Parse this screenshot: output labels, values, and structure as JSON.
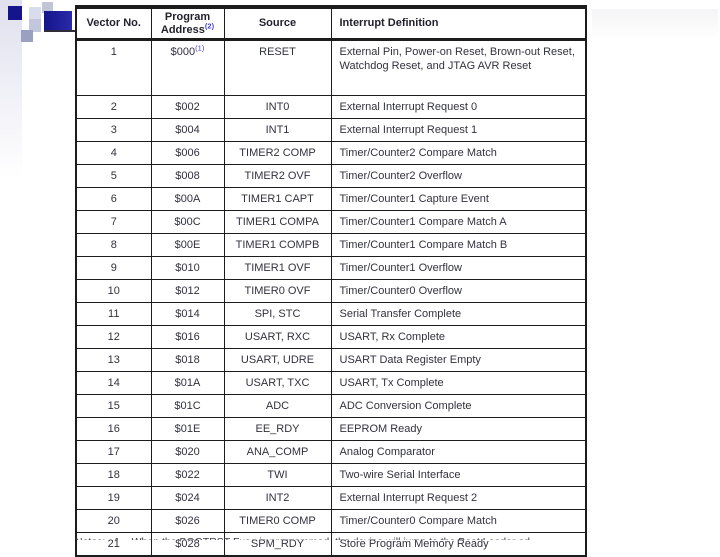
{
  "slide": {
    "footnote": "Notes:   1.   When the BOOTRST Fuse is programmed, the device will jump to the Boot Loader ad"
  },
  "colors": {
    "accent_navy": "#14148c",
    "navy_block": "#2a2aa8",
    "square_light": "#d9dcea",
    "square_lavender": "#c3c7dd",
    "square_gray": "#9aa0bf",
    "square_gray_top": "#c2c5d6",
    "strip_top": "#e0e0ef",
    "border_black": "#1c1c1c",
    "text_dark": "#32323e",
    "superscript_blue": "#4343cf",
    "artifact_gray": "#f4f4f6"
  },
  "table": {
    "header": {
      "vector_no": "Vector No.",
      "program_address_line1": "Program",
      "program_address_line2": "Address",
      "program_address_superscript": "(2)",
      "source": "Source",
      "interrupt_definition": "Interrupt Definition"
    },
    "rows": [
      {
        "vector_no": "1",
        "program_address": "$000",
        "program_address_superscript": "(1)",
        "source": "RESET",
        "interrupt_definition": "External Pin, Power-on Reset, Brown-out Reset, Watchdog Reset, and JTAG AVR Reset"
      },
      {
        "vector_no": "2",
        "program_address": "$002",
        "source": "INT0",
        "interrupt_definition": "External Interrupt Request 0"
      },
      {
        "vector_no": "3",
        "program_address": "$004",
        "source": "INT1",
        "interrupt_definition": "External Interrupt Request 1"
      },
      {
        "vector_no": "4",
        "program_address": "$006",
        "source": "TIMER2 COMP",
        "interrupt_definition": "Timer/Counter2 Compare Match"
      },
      {
        "vector_no": "5",
        "program_address": "$008",
        "source": "TIMER2 OVF",
        "interrupt_definition": "Timer/Counter2 Overflow"
      },
      {
        "vector_no": "6",
        "program_address": "$00A",
        "source": "TIMER1 CAPT",
        "interrupt_definition": "Timer/Counter1 Capture Event"
      },
      {
        "vector_no": "7",
        "program_address": "$00C",
        "source": "TIMER1 COMPA",
        "interrupt_definition": "Timer/Counter1 Compare Match A"
      },
      {
        "vector_no": "8",
        "program_address": "$00E",
        "source": "TIMER1 COMPB",
        "interrupt_definition": "Timer/Counter1 Compare Match B"
      },
      {
        "vector_no": "9",
        "program_address": "$010",
        "source": "TIMER1 OVF",
        "interrupt_definition": "Timer/Counter1 Overflow"
      },
      {
        "vector_no": "10",
        "program_address": "$012",
        "source": "TIMER0 OVF",
        "interrupt_definition": "Timer/Counter0 Overflow"
      },
      {
        "vector_no": "11",
        "program_address": "$014",
        "source": "SPI, STC",
        "interrupt_definition": "Serial Transfer Complete"
      },
      {
        "vector_no": "12",
        "program_address": "$016",
        "source": "USART, RXC",
        "interrupt_definition": "USART, Rx Complete"
      },
      {
        "vector_no": "13",
        "program_address": "$018",
        "source": "USART, UDRE",
        "interrupt_definition": "USART Data Register Empty"
      },
      {
        "vector_no": "14",
        "program_address": "$01A",
        "source": "USART, TXC",
        "interrupt_definition": "USART, Tx Complete"
      },
      {
        "vector_no": "15",
        "program_address": "$01C",
        "source": "ADC",
        "interrupt_definition": "ADC Conversion Complete"
      },
      {
        "vector_no": "16",
        "program_address": "$01E",
        "source": "EE_RDY",
        "interrupt_definition": "EEPROM Ready"
      },
      {
        "vector_no": "17",
        "program_address": "$020",
        "source": "ANA_COMP",
        "interrupt_definition": "Analog Comparator"
      },
      {
        "vector_no": "18",
        "program_address": "$022",
        "source": "TWI",
        "interrupt_definition": "Two-wire Serial Interface"
      },
      {
        "vector_no": "19",
        "program_address": "$024",
        "source": "INT2",
        "interrupt_definition": "External Interrupt Request 2"
      },
      {
        "vector_no": "20",
        "program_address": "$026",
        "source": "TIMER0 COMP",
        "interrupt_definition": "Timer/Counter0 Compare Match"
      },
      {
        "vector_no": "21",
        "program_address": "$028",
        "source": "SPM_RDY",
        "interrupt_definition": "Store Program Memory Ready"
      }
    ]
  }
}
